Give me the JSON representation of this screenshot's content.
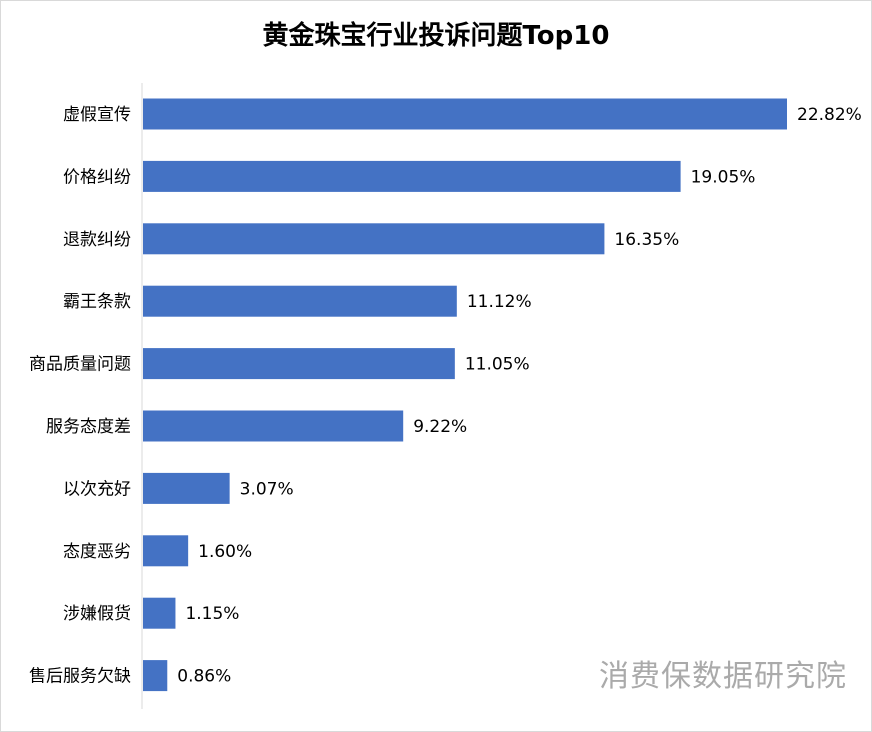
{
  "chart_data": {
    "type": "bar",
    "orientation": "horizontal",
    "title": "黄金珠宝行业投诉问题Top10",
    "categories": [
      "虚假宣传",
      "价格纠纷",
      "退款纠纷",
      "霸王条款",
      "商品质量问题",
      "服务态度差",
      "以次充好",
      "态度恶劣",
      "涉嫌假货",
      "售后服务欠缺"
    ],
    "values": [
      22.82,
      19.05,
      16.35,
      11.12,
      11.05,
      9.22,
      3.07,
      1.6,
      1.15,
      0.86
    ],
    "value_labels": [
      "22.82%",
      "19.05%",
      "16.35%",
      "11.12%",
      "11.05%",
      "9.22%",
      "3.07%",
      "1.60%",
      "1.15%",
      "0.86%"
    ],
    "bar_color": "#4472c4",
    "xlim": [
      0,
      22.82
    ],
    "grid": false,
    "legend": "none"
  },
  "watermark": "消费保数据研究院"
}
